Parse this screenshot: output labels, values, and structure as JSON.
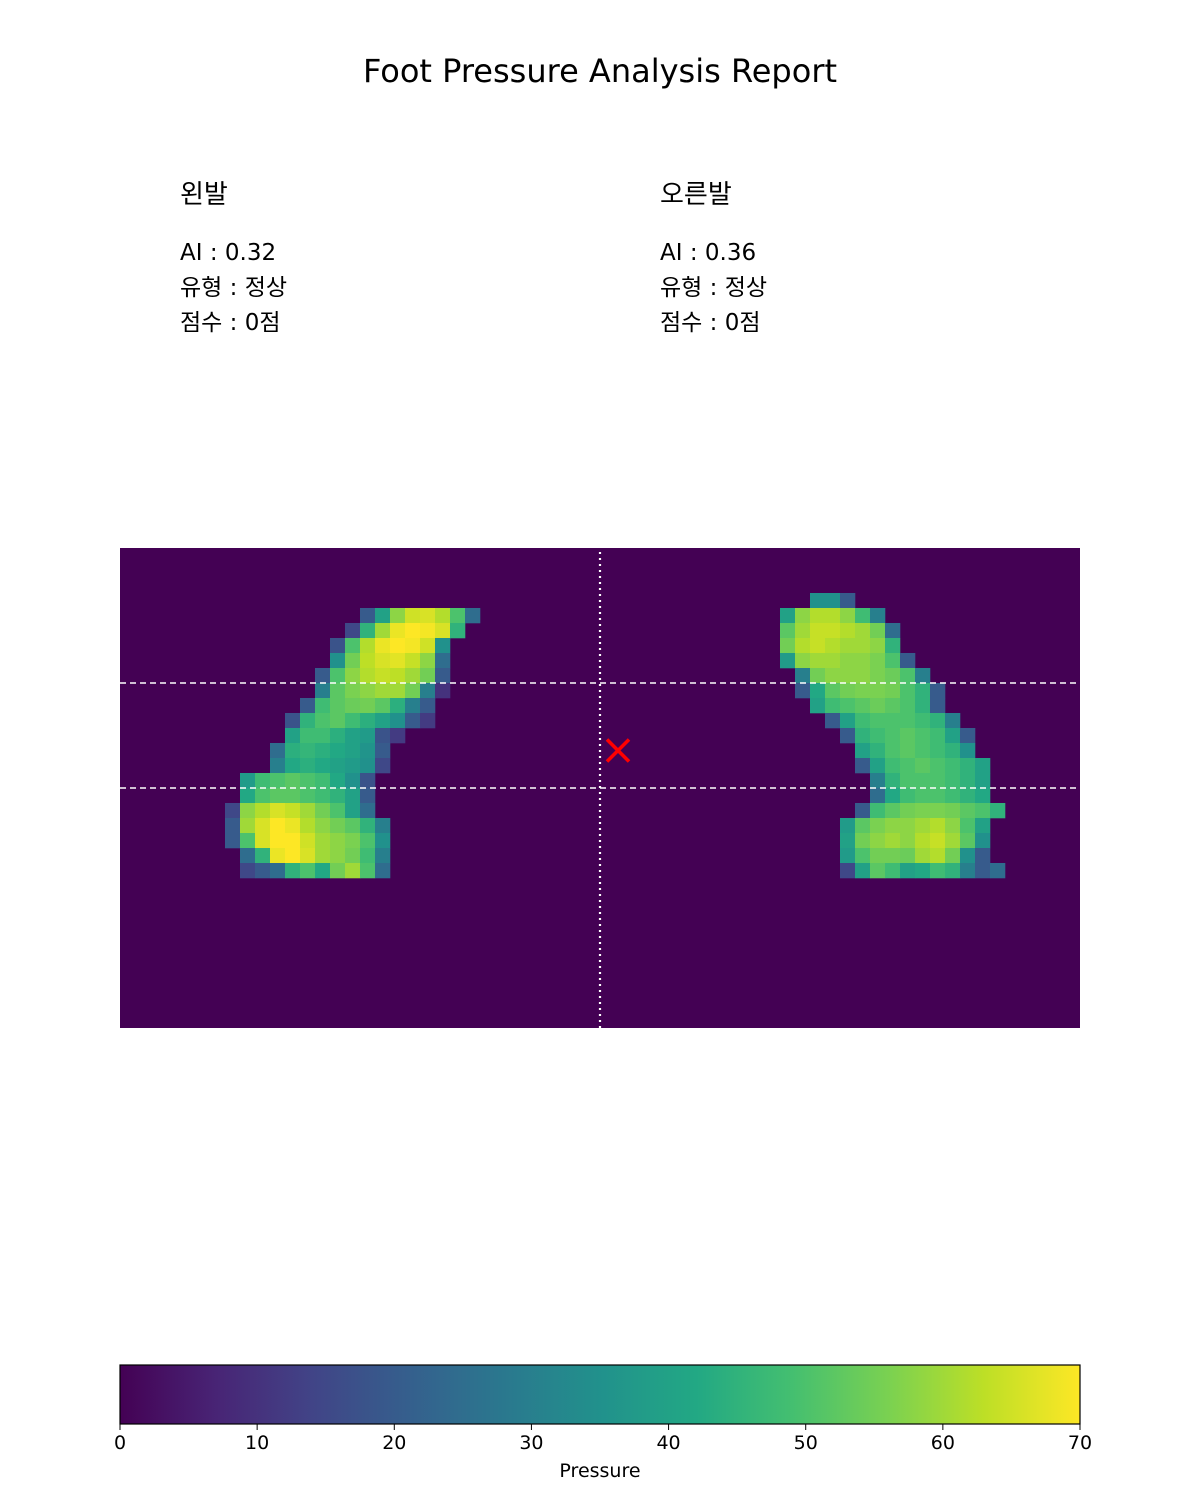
{
  "report": {
    "title": "Foot Pressure Analysis Report"
  },
  "panels": [
    {
      "heading": "왼발",
      "ai_label": "AI",
      "ai_value": "0.32",
      "type_label": "유형",
      "type_value": "정상",
      "score_label": "점수",
      "score_value": "0점"
    },
    {
      "heading": "오른발",
      "ai_label": "AI",
      "ai_value": "0.36",
      "type_label": "유형",
      "type_value": "정상",
      "score_label": "점수",
      "score_value": "0점"
    }
  ],
  "chart_data": {
    "type": "heatmap",
    "colormap": "viridis",
    "grid": {
      "cols": 64,
      "rows": 32
    },
    "value_range": [
      0,
      70
    ],
    "colorbar": {
      "label": "Pressure",
      "ticks": [
        0,
        10,
        20,
        30,
        40,
        50,
        60,
        70
      ],
      "orientation": "horizontal"
    },
    "reference_lines": {
      "horizontal_dashed_rows": [
        9,
        16
      ],
      "vertical_dotted_col": 32
    },
    "marker": {
      "symbol": "x",
      "color": "#ff0000",
      "col": 33.2,
      "row": 13.5
    },
    "feet": [
      {
        "side": "left",
        "rows": [
          {
            "row": 4,
            "start": 16,
            "values": [
              20,
              40,
              58,
              65,
              66,
              62,
              50,
              25
            ]
          },
          {
            "row": 5,
            "start": 15,
            "values": [
              15,
              45,
              60,
              68,
              70,
              69,
              66,
              45
            ]
          },
          {
            "row": 6,
            "start": 14,
            "values": [
              18,
              50,
              62,
              68,
              70,
              69,
              65,
              35
            ]
          },
          {
            "row": 7,
            "start": 14,
            "values": [
              35,
              55,
              63,
              66,
              67,
              64,
              58,
              25
            ]
          },
          {
            "row": 8,
            "start": 13,
            "values": [
              20,
              50,
              58,
              62,
              64,
              63,
              60,
              55,
              20
            ]
          },
          {
            "row": 9,
            "start": 13,
            "values": [
              30,
              52,
              56,
              58,
              60,
              60,
              55,
              30,
              10
            ]
          },
          {
            "row": 10,
            "start": 12,
            "values": [
              20,
              48,
              52,
              54,
              55,
              52,
              44,
              30,
              20
            ]
          },
          {
            "row": 11,
            "start": 11,
            "values": [
              18,
              45,
              50,
              52,
              48,
              44,
              40,
              35,
              20,
              12
            ]
          },
          {
            "row": 12,
            "start": 11,
            "values": [
              40,
              48,
              48,
              44,
              40,
              38,
              18,
              12
            ]
          },
          {
            "row": 13,
            "start": 10,
            "values": [
              25,
              44,
              46,
              44,
              42,
              40,
              36,
              20
            ]
          },
          {
            "row": 14,
            "start": 10,
            "values": [
              30,
              42,
              44,
              42,
              40,
              38,
              35,
              15
            ]
          },
          {
            "row": 15,
            "start": 8,
            "values": [
              38,
              48,
              50,
              52,
              50,
              48,
              42,
              35,
              18
            ]
          },
          {
            "row": 16,
            "start": 8,
            "values": [
              42,
              50,
              52,
              52,
              50,
              48,
              45,
              40,
              20
            ]
          },
          {
            "row": 17,
            "start": 7,
            "values": [
              15,
              58,
              62,
              66,
              64,
              60,
              55,
              50,
              40,
              25
            ]
          },
          {
            "row": 18,
            "start": 7,
            "values": [
              20,
              60,
              66,
              70,
              68,
              62,
              58,
              55,
              52,
              45,
              30
            ]
          },
          {
            "row": 19,
            "start": 7,
            "values": [
              20,
              50,
              66,
              70,
              70,
              65,
              60,
              58,
              56,
              50,
              35
            ]
          },
          {
            "row": 20,
            "start": 8,
            "values": [
              25,
              45,
              68,
              70,
              66,
              60,
              58,
              55,
              48,
              30
            ]
          },
          {
            "row": 21,
            "start": 8,
            "values": [
              15,
              20,
              25,
              45,
              50,
              42,
              55,
              60,
              50,
              25
            ]
          }
        ]
      },
      {
        "side": "right",
        "rows": [
          {
            "row": 3,
            "start": 46,
            "values": [
              35,
              35,
              20
            ]
          },
          {
            "row": 4,
            "start": 44,
            "values": [
              40,
              58,
              62,
              62,
              58,
              48,
              30
            ]
          },
          {
            "row": 5,
            "start": 44,
            "values": [
              52,
              60,
              64,
              64,
              62,
              60,
              55,
              25
            ]
          },
          {
            "row": 6,
            "start": 44,
            "values": [
              55,
              62,
              64,
              62,
              60,
              60,
              58,
              45
            ]
          },
          {
            "row": 7,
            "start": 44,
            "values": [
              38,
              58,
              60,
              60,
              58,
              58,
              56,
              50,
              20
            ]
          },
          {
            "row": 8,
            "start": 45,
            "values": [
              30,
              55,
              58,
              58,
              58,
              56,
              54,
              50,
              30
            ]
          },
          {
            "row": 9,
            "start": 45,
            "values": [
              20,
              42,
              52,
              55,
              56,
              56,
              55,
              50,
              45,
              20
            ]
          },
          {
            "row": 10,
            "start": 46,
            "values": [
              40,
              48,
              50,
              52,
              54,
              52,
              50,
              45,
              20
            ]
          },
          {
            "row": 11,
            "start": 47,
            "values": [
              20,
              40,
              48,
              50,
              50,
              50,
              48,
              45,
              30
            ]
          },
          {
            "row": 12,
            "start": 48,
            "values": [
              20,
              45,
              48,
              50,
              52,
              50,
              48,
              40,
              20
            ]
          },
          {
            "row": 13,
            "start": 49,
            "values": [
              40,
              45,
              50,
              52,
              50,
              48,
              45,
              35
            ]
          },
          {
            "row": 14,
            "start": 49,
            "values": [
              20,
              40,
              48,
              50,
              52,
              50,
              48,
              45,
              40
            ]
          },
          {
            "row": 15,
            "start": 50,
            "values": [
              30,
              45,
              50,
              50,
              50,
              48,
              45,
              40
            ]
          },
          {
            "row": 16,
            "start": 50,
            "values": [
              25,
              42,
              48,
              50,
              50,
              48,
              45,
              42
            ]
          },
          {
            "row": 17,
            "start": 49,
            "values": [
              20,
              48,
              52,
              55,
              56,
              56,
              55,
              52,
              50,
              45
            ]
          },
          {
            "row": 18,
            "start": 48,
            "values": [
              38,
              52,
              56,
              58,
              58,
              60,
              62,
              58,
              50,
              40
            ]
          },
          {
            "row": 19,
            "start": 48,
            "values": [
              40,
              55,
              58,
              60,
              58,
              62,
              64,
              60,
              52,
              35
            ]
          },
          {
            "row": 20,
            "start": 48,
            "values": [
              38,
              50,
              55,
              55,
              54,
              60,
              62,
              55,
              35,
              20
            ]
          },
          {
            "row": 21,
            "start": 48,
            "values": [
              15,
              40,
              52,
              48,
              40,
              42,
              48,
              45,
              30,
              20,
              25
            ]
          }
        ]
      }
    ]
  }
}
